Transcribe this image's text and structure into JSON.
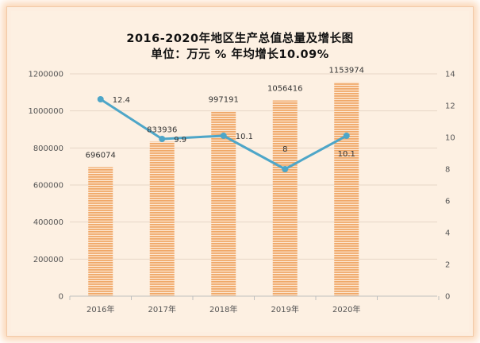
{
  "chart_data": {
    "type": "bar",
    "title": "2016-2020年地区生产总值总量及增长图",
    "subtitle": "单位：万元 % 年均增长10.09%",
    "categories": [
      "2016年",
      "2017年",
      "2018年",
      "2019年",
      "2020年"
    ],
    "series": [
      {
        "type": "bar",
        "axis": "left",
        "values": [
          696074,
          833936,
          997191,
          1056416,
          1153974
        ],
        "color": "#f0a868"
      },
      {
        "type": "line",
        "axis": "right",
        "values": [
          12.4,
          9.9,
          10.1,
          8,
          10.1
        ],
        "color": "#4ea6c8"
      }
    ],
    "bar_labels": [
      "696074",
      "833936",
      "997191",
      "1056416",
      "1153974"
    ],
    "line_labels": [
      "12.4",
      "9.9",
      "10.1",
      "8",
      "10.1"
    ],
    "y_left": {
      "ylim": [
        0,
        1200000
      ],
      "ticks": [
        "0",
        "200000",
        "400000",
        "600000",
        "800000",
        "1000000",
        "1200000"
      ]
    },
    "y_right": {
      "ylim": [
        0,
        14
      ],
      "ticks": [
        "0",
        "2",
        "4",
        "6",
        "8",
        "10",
        "12",
        "14"
      ]
    },
    "grid": true,
    "legend": "none"
  }
}
